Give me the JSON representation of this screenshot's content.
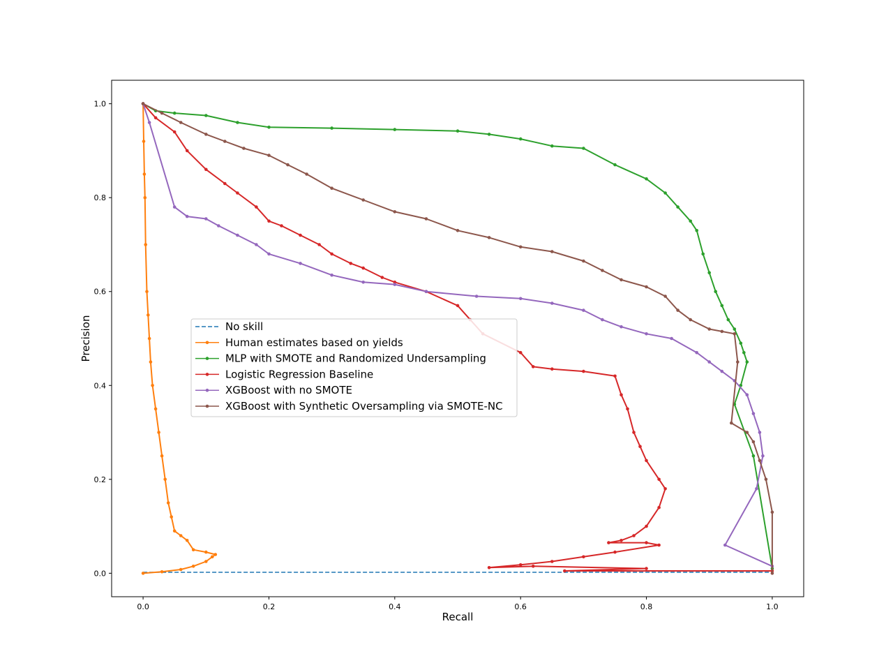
{
  "chart_data": {
    "type": "line",
    "title": "",
    "xlabel": "Recall",
    "ylabel": "Precision",
    "xlim": [
      -0.05,
      1.05
    ],
    "ylim": [
      -0.05,
      1.05
    ],
    "xticks": [
      "0.0",
      "0.2",
      "0.4",
      "0.6",
      "0.8",
      "1.0"
    ],
    "yticks": [
      "0.0",
      "0.2",
      "0.4",
      "0.6",
      "0.8",
      "1.0"
    ],
    "grid": false,
    "legend_position": "center-left",
    "series": [
      {
        "name": "No skill",
        "color": "#1f77b4",
        "style": "dashed",
        "marker": false,
        "x": [
          0,
          1
        ],
        "y": [
          0.002,
          0.002
        ]
      },
      {
        "name": "Human estimates based on yields",
        "color": "#ff7f0e",
        "style": "solid",
        "marker": true,
        "x": [
          0,
          0.03,
          0.06,
          0.08,
          0.1,
          0.11,
          0.115,
          0.1,
          0.08,
          0.07,
          0.06,
          0.05,
          0.045,
          0.04,
          0.035,
          0.03,
          0.025,
          0.02,
          0.015,
          0.012,
          0.01,
          0.008,
          0.006,
          0.004,
          0.003,
          0.002,
          0.001,
          0.0
        ],
        "y": [
          0.0,
          0.003,
          0.008,
          0.015,
          0.025,
          0.035,
          0.04,
          0.045,
          0.05,
          0.07,
          0.08,
          0.09,
          0.12,
          0.15,
          0.2,
          0.25,
          0.3,
          0.35,
          0.4,
          0.45,
          0.5,
          0.55,
          0.6,
          0.7,
          0.8,
          0.85,
          0.92,
          1.0
        ]
      },
      {
        "name": "MLP with SMOTE and Randomized Undersampling",
        "color": "#2ca02c",
        "style": "solid",
        "marker": true,
        "x": [
          0.0,
          0.02,
          0.05,
          0.1,
          0.15,
          0.2,
          0.3,
          0.4,
          0.5,
          0.55,
          0.6,
          0.65,
          0.7,
          0.75,
          0.8,
          0.83,
          0.85,
          0.87,
          0.88,
          0.89,
          0.9,
          0.91,
          0.92,
          0.93,
          0.94,
          0.95,
          0.955,
          0.96,
          0.95,
          0.94,
          0.97,
          1.0
        ],
        "y": [
          1.0,
          0.985,
          0.98,
          0.975,
          0.96,
          0.95,
          0.948,
          0.945,
          0.942,
          0.935,
          0.925,
          0.91,
          0.905,
          0.87,
          0.84,
          0.81,
          0.78,
          0.75,
          0.73,
          0.68,
          0.64,
          0.6,
          0.57,
          0.54,
          0.52,
          0.49,
          0.47,
          0.45,
          0.4,
          0.36,
          0.25,
          0.01
        ]
      },
      {
        "name": "Logistic Regression Baseline",
        "color": "#d62728",
        "style": "solid",
        "marker": true,
        "x": [
          0.0,
          0.02,
          0.05,
          0.07,
          0.1,
          0.13,
          0.15,
          0.18,
          0.2,
          0.22,
          0.25,
          0.28,
          0.3,
          0.33,
          0.35,
          0.38,
          0.4,
          0.45,
          0.5,
          0.52,
          0.54,
          0.6,
          0.62,
          0.65,
          0.7,
          0.75,
          0.76,
          0.77,
          0.78,
          0.79,
          0.8,
          0.82,
          0.83,
          0.82,
          0.8,
          0.78,
          0.76,
          0.74,
          0.8,
          0.82,
          0.75,
          0.7,
          0.65,
          0.6,
          0.55,
          0.62,
          0.8,
          0.67,
          1.0
        ],
        "y": [
          1.0,
          0.97,
          0.94,
          0.9,
          0.86,
          0.83,
          0.81,
          0.78,
          0.75,
          0.74,
          0.72,
          0.7,
          0.68,
          0.66,
          0.65,
          0.63,
          0.62,
          0.6,
          0.57,
          0.54,
          0.51,
          0.47,
          0.44,
          0.435,
          0.43,
          0.42,
          0.38,
          0.35,
          0.3,
          0.27,
          0.24,
          0.2,
          0.18,
          0.14,
          0.1,
          0.08,
          0.07,
          0.065,
          0.065,
          0.06,
          0.045,
          0.035,
          0.025,
          0.018,
          0.012,
          0.015,
          0.01,
          0.005,
          0.005
        ]
      },
      {
        "name": "XGBoost with no SMOTE",
        "color": "#9467bd",
        "style": "solid",
        "marker": true,
        "x": [
          0.0,
          0.01,
          0.05,
          0.07,
          0.1,
          0.12,
          0.15,
          0.18,
          0.2,
          0.25,
          0.3,
          0.35,
          0.4,
          0.45,
          0.53,
          0.6,
          0.65,
          0.7,
          0.73,
          0.76,
          0.8,
          0.84,
          0.88,
          0.9,
          0.92,
          0.94,
          0.96,
          0.97,
          0.98,
          0.985,
          0.975,
          0.925,
          1.0
        ],
        "y": [
          1.0,
          0.96,
          0.78,
          0.76,
          0.755,
          0.74,
          0.72,
          0.7,
          0.68,
          0.66,
          0.635,
          0.62,
          0.615,
          0.6,
          0.59,
          0.585,
          0.575,
          0.56,
          0.54,
          0.525,
          0.51,
          0.5,
          0.47,
          0.45,
          0.43,
          0.41,
          0.38,
          0.34,
          0.3,
          0.25,
          0.18,
          0.06,
          0.015
        ]
      },
      {
        "name": "XGBoost with Synthetic Oversampling via SMOTE-NC",
        "color": "#8c564b",
        "style": "solid",
        "marker": true,
        "x": [
          0.0,
          0.03,
          0.06,
          0.1,
          0.13,
          0.16,
          0.2,
          0.23,
          0.26,
          0.3,
          0.35,
          0.4,
          0.45,
          0.5,
          0.55,
          0.6,
          0.65,
          0.7,
          0.73,
          0.76,
          0.8,
          0.83,
          0.85,
          0.87,
          0.9,
          0.92,
          0.94,
          0.945,
          0.935,
          0.96,
          0.97,
          0.98,
          0.99,
          1.0,
          1.0
        ],
        "y": [
          1.0,
          0.98,
          0.96,
          0.935,
          0.92,
          0.905,
          0.89,
          0.87,
          0.85,
          0.82,
          0.795,
          0.77,
          0.755,
          0.73,
          0.715,
          0.695,
          0.685,
          0.665,
          0.645,
          0.625,
          0.61,
          0.59,
          0.56,
          0.54,
          0.52,
          0.515,
          0.51,
          0.45,
          0.32,
          0.3,
          0.28,
          0.24,
          0.2,
          0.13,
          0.0
        ]
      }
    ]
  }
}
